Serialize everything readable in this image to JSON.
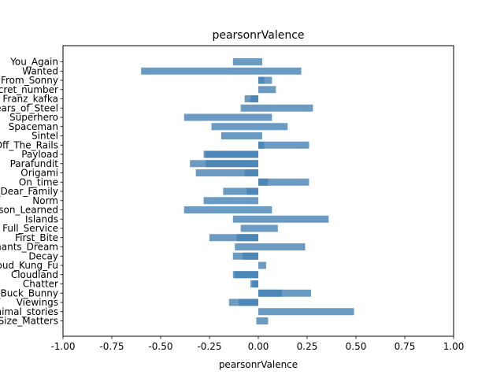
{
  "chart_data": {
    "type": "bar",
    "orientation": "horizontal",
    "title": "pearsonrValence",
    "xlabel": "pearsonrValence",
    "ylabel": "",
    "xlim": [
      -1.0,
      1.0
    ],
    "xticks": [
      "-1.00",
      "-0.75",
      "-0.50",
      "-0.25",
      "0.00",
      "0.25",
      "0.50",
      "0.75",
      "1.00"
    ],
    "grid": false,
    "bar_color": "#4682b4",
    "bar_opacity": 0.8,
    "categories": [
      "You_Again",
      "Wanted",
      "From_Sonny",
      "Secret_number",
      "Franz_kafka",
      "Tears_of_Steel",
      "Superhero",
      "Spaceman",
      "Sintel",
      "Off_The_Rails",
      "Payload",
      "Parafundit",
      "Origami",
      "On_time",
      "Our_Dear_Family",
      "Norm",
      "Lesson_Learned",
      "Islands",
      "Full_Service",
      "First_Bite",
      "Elephants_Dream",
      "Decay",
      "Cloud_Kung_Fu",
      "Cloudland",
      "Chatter",
      "Big_Buck_Bunny",
      "Viewings",
      "Animal_stories",
      "Size_Matters"
    ],
    "series": [
      {
        "values": [
          -0.13,
          -0.6,
          0.0,
          0.0,
          -0.07,
          -0.09,
          -0.38,
          -0.24,
          -0.19,
          0.0,
          -0.28,
          -0.35,
          -0.32,
          0.0,
          -0.18,
          -0.28,
          -0.38,
          -0.13,
          -0.09,
          -0.25,
          -0.12,
          -0.13,
          0.0,
          -0.13,
          -0.04,
          0.0,
          -0.15,
          0.0,
          -0.01
        ]
      },
      {
        "values": [
          0.02,
          0.22,
          0.07,
          0.09,
          -0.04,
          0.28,
          0.07,
          0.15,
          0.02,
          0.26,
          -0.27,
          -0.27,
          -0.07,
          0.26,
          -0.06,
          0.0,
          0.07,
          0.36,
          0.1,
          -0.11,
          0.24,
          -0.08,
          0.04,
          -0.12,
          -0.03,
          0.27,
          -0.1,
          0.49,
          0.05
        ]
      },
      {
        "values": [
          0.0,
          0.0,
          0.03,
          0.0,
          0.0,
          0.0,
          0.0,
          0.0,
          0.0,
          0.03,
          0.0,
          0.0,
          0.0,
          0.05,
          0.0,
          0.0,
          0.0,
          0.0,
          0.0,
          0.0,
          0.0,
          0.0,
          0.0,
          0.0,
          0.0,
          0.12,
          0.0,
          0.0,
          0.0
        ]
      }
    ]
  }
}
